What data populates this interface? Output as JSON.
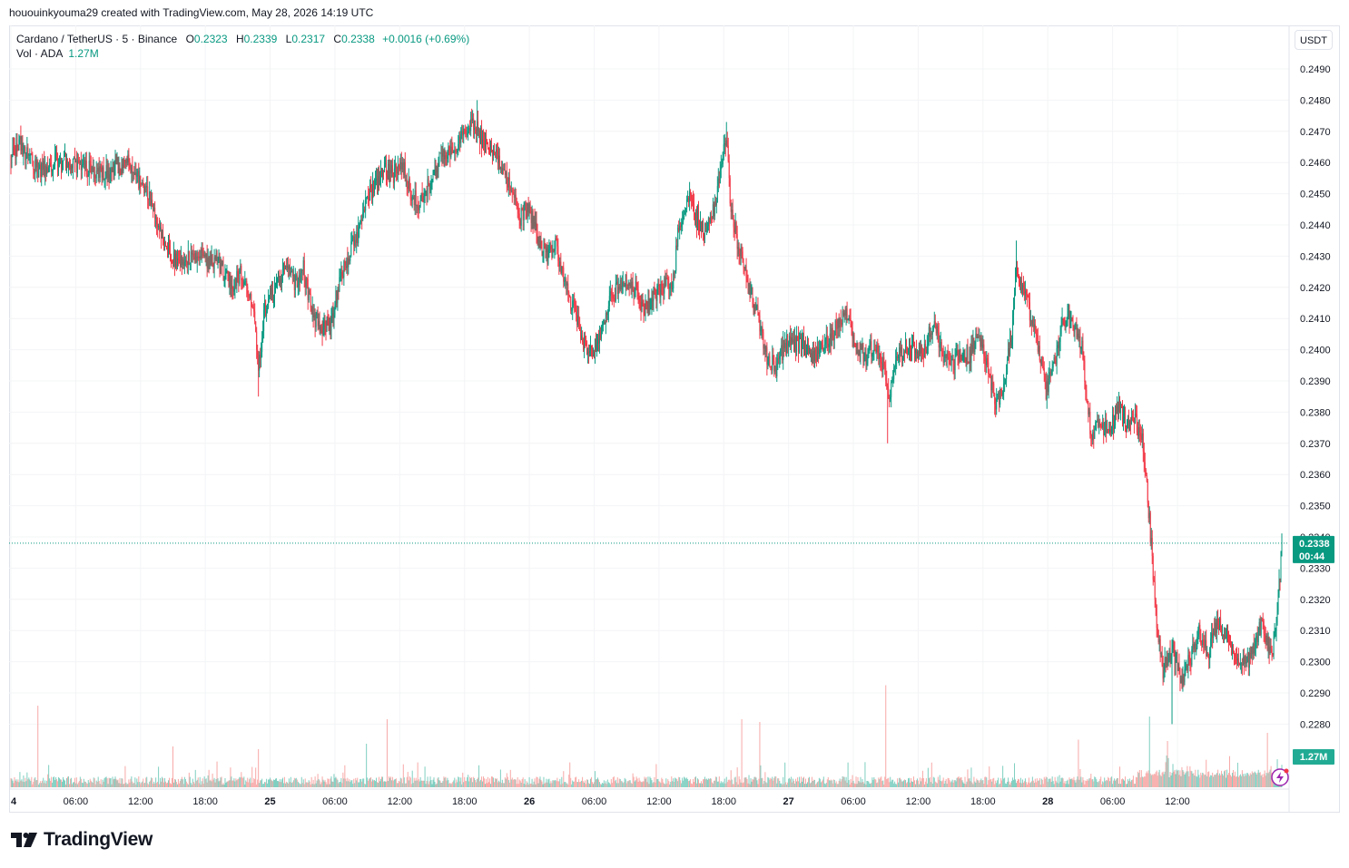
{
  "header": {
    "attribution": "hououinkyouma29 created with TradingView.com, May 28, 2026 14:19 UTC"
  },
  "legend": {
    "symbol": "Cardano / TetherUS · 5 · Binance",
    "o_label": "O",
    "o_value": "0.2323",
    "h_label": "H",
    "h_value": "0.2339",
    "l_label": "L",
    "l_value": "0.2317",
    "c_label": "C",
    "c_value": "0.2338",
    "change": "+0.0016 (+0.69%)",
    "vol_label": "Vol · ADA",
    "vol_value": "1.27M"
  },
  "currency_button": "USDT",
  "brand": {
    "name": "TradingView",
    "icon": "tradingview-logo-icon"
  },
  "colors": {
    "up": "#089981",
    "down": "#f23645",
    "vol_up": "#7fcfc1",
    "vol_down": "#f7a9a7",
    "grid": "#f3f4f6",
    "text": "#131722"
  },
  "chart_data": {
    "type": "candlestick",
    "instrument": "Cardano / TetherUS",
    "interval": "5",
    "exchange": "Binance",
    "ylim": [
      0.2275,
      0.2492
    ],
    "yticks": [
      "0.2490",
      "0.2480",
      "0.2470",
      "0.2460",
      "0.2450",
      "0.2440",
      "0.2430",
      "0.2420",
      "0.2410",
      "0.2400",
      "0.2390",
      "0.2380",
      "0.2370",
      "0.2360",
      "0.2350",
      "0.2340",
      "0.2330",
      "0.2320",
      "0.2310",
      "0.2300",
      "0.2290",
      "0.2280"
    ],
    "xlim": [
      0,
      1412
    ],
    "xticks": [
      {
        "t": 0,
        "label": "4"
      },
      {
        "t": 72,
        "label": "06:00"
      },
      {
        "t": 144,
        "label": "12:00"
      },
      {
        "t": 216,
        "label": "18:00"
      },
      {
        "t": 288,
        "label": "25"
      },
      {
        "t": 360,
        "label": "06:00"
      },
      {
        "t": 432,
        "label": "12:00"
      },
      {
        "t": 504,
        "label": "18:00"
      },
      {
        "t": 576,
        "label": "26"
      },
      {
        "t": 648,
        "label": "06:00"
      },
      {
        "t": 720,
        "label": "12:00"
      },
      {
        "t": 792,
        "label": "18:00"
      },
      {
        "t": 864,
        "label": "27"
      },
      {
        "t": 936,
        "label": "06:00"
      },
      {
        "t": 1008,
        "label": "12:00"
      },
      {
        "t": 1080,
        "label": "18:00"
      },
      {
        "t": 1152,
        "label": "28"
      },
      {
        "t": 1224,
        "label": "06:00"
      },
      {
        "t": 1296,
        "label": "12:00"
      }
    ],
    "price_path": [
      [
        0,
        0.2461
      ],
      [
        10,
        0.2466
      ],
      [
        30,
        0.2457
      ],
      [
        50,
        0.2461
      ],
      [
        80,
        0.2459
      ],
      [
        100,
        0.2456
      ],
      [
        130,
        0.246
      ],
      [
        150,
        0.2451
      ],
      [
        165,
        0.244
      ],
      [
        175,
        0.2433
      ],
      [
        185,
        0.2427
      ],
      [
        200,
        0.2431
      ],
      [
        215,
        0.2429
      ],
      [
        230,
        0.2428
      ],
      [
        245,
        0.242
      ],
      [
        255,
        0.2425
      ],
      [
        265,
        0.2418
      ],
      [
        270,
        0.241
      ],
      [
        275,
        0.2393
      ],
      [
        282,
        0.2413
      ],
      [
        290,
        0.2418
      ],
      [
        305,
        0.2426
      ],
      [
        315,
        0.2421
      ],
      [
        325,
        0.2426
      ],
      [
        335,
        0.2411
      ],
      [
        345,
        0.2407
      ],
      [
        355,
        0.2409
      ],
      [
        365,
        0.2421
      ],
      [
        375,
        0.243
      ],
      [
        385,
        0.2437
      ],
      [
        395,
        0.2448
      ],
      [
        405,
        0.2453
      ],
      [
        415,
        0.2457
      ],
      [
        425,
        0.2456
      ],
      [
        435,
        0.2459
      ],
      [
        445,
        0.245
      ],
      [
        455,
        0.2447
      ],
      [
        465,
        0.2453
      ],
      [
        475,
        0.2461
      ],
      [
        485,
        0.2462
      ],
      [
        495,
        0.2464
      ],
      [
        505,
        0.2471
      ],
      [
        515,
        0.2473
      ],
      [
        525,
        0.2466
      ],
      [
        535,
        0.2465
      ],
      [
        545,
        0.2458
      ],
      [
        555,
        0.2452
      ],
      [
        565,
        0.2442
      ],
      [
        575,
        0.2446
      ],
      [
        585,
        0.2437
      ],
      [
        595,
        0.243
      ],
      [
        605,
        0.2434
      ],
      [
        615,
        0.2421
      ],
      [
        625,
        0.2413
      ],
      [
        635,
        0.2403
      ],
      [
        645,
        0.2398
      ],
      [
        655,
        0.2405
      ],
      [
        665,
        0.2416
      ],
      [
        675,
        0.242
      ],
      [
        685,
        0.2422
      ],
      [
        695,
        0.2419
      ],
      [
        705,
        0.2412
      ],
      [
        715,
        0.2418
      ],
      [
        725,
        0.2421
      ],
      [
        735,
        0.2419
      ],
      [
        742,
        0.244
      ],
      [
        752,
        0.245
      ],
      [
        762,
        0.2442
      ],
      [
        772,
        0.2437
      ],
      [
        782,
        0.2446
      ],
      [
        790,
        0.2462
      ],
      [
        795,
        0.2469
      ],
      [
        800,
        0.2445
      ],
      [
        810,
        0.2431
      ],
      [
        820,
        0.2421
      ],
      [
        830,
        0.241
      ],
      [
        840,
        0.2398
      ],
      [
        850,
        0.2394
      ],
      [
        860,
        0.2402
      ],
      [
        870,
        0.2401
      ],
      [
        880,
        0.2403
      ],
      [
        890,
        0.2396
      ],
      [
        900,
        0.2402
      ],
      [
        910,
        0.2403
      ],
      [
        920,
        0.2409
      ],
      [
        930,
        0.2411
      ],
      [
        940,
        0.2401
      ],
      [
        950,
        0.2398
      ],
      [
        960,
        0.2402
      ],
      [
        970,
        0.2394
      ],
      [
        975,
        0.2384
      ],
      [
        985,
        0.2397
      ],
      [
        995,
        0.2401
      ],
      [
        1005,
        0.24
      ],
      [
        1015,
        0.2399
      ],
      [
        1025,
        0.241
      ],
      [
        1035,
        0.2398
      ],
      [
        1045,
        0.2395
      ],
      [
        1055,
        0.2399
      ],
      [
        1065,
        0.2398
      ],
      [
        1075,
        0.2405
      ],
      [
        1085,
        0.2395
      ],
      [
        1095,
        0.2382
      ],
      [
        1105,
        0.2392
      ],
      [
        1112,
        0.2405
      ],
      [
        1117,
        0.2426
      ],
      [
        1125,
        0.2418
      ],
      [
        1135,
        0.241
      ],
      [
        1145,
        0.2396
      ],
      [
        1150,
        0.2387
      ],
      [
        1160,
        0.2397
      ],
      [
        1170,
        0.241
      ],
      [
        1180,
        0.2409
      ],
      [
        1190,
        0.24
      ],
      [
        1200,
        0.2372
      ],
      [
        1210,
        0.2377
      ],
      [
        1220,
        0.2373
      ],
      [
        1230,
        0.2382
      ],
      [
        1240,
        0.2376
      ],
      [
        1250,
        0.2377
      ],
      [
        1258,
        0.237
      ],
      [
        1265,
        0.2345
      ],
      [
        1272,
        0.2316
      ],
      [
        1280,
        0.2297
      ],
      [
        1290,
        0.2305
      ],
      [
        1300,
        0.2293
      ],
      [
        1310,
        0.2301
      ],
      [
        1320,
        0.2309
      ],
      [
        1330,
        0.2303
      ],
      [
        1340,
        0.2312
      ],
      [
        1350,
        0.231
      ],
      [
        1360,
        0.2301
      ],
      [
        1370,
        0.2299
      ],
      [
        1380,
        0.2303
      ],
      [
        1390,
        0.2313
      ],
      [
        1400,
        0.2302
      ],
      [
        1406,
        0.231
      ],
      [
        1412,
        0.2338
      ]
    ],
    "notable_extremes": [
      {
        "t": 275,
        "low": 0.2385
      },
      {
        "t": 518,
        "high": 0.248
      },
      {
        "t": 795,
        "high": 0.2473
      },
      {
        "t": 974,
        "low": 0.237
      },
      {
        "t": 1117,
        "high": 0.2435
      },
      {
        "t": 1290,
        "low": 0.228
      }
    ],
    "volume_spikes": [
      {
        "t": 30,
        "v": 0.6
      },
      {
        "t": 180,
        "v": 0.3
      },
      {
        "t": 275,
        "v": 0.28
      },
      {
        "t": 395,
        "v": 0.32
      },
      {
        "t": 418,
        "v": 0.5
      },
      {
        "t": 812,
        "v": 0.5
      },
      {
        "t": 832,
        "v": 0.48
      },
      {
        "t": 972,
        "v": 0.75
      },
      {
        "t": 1186,
        "v": 0.35
      },
      {
        "t": 1265,
        "v": 0.52
      },
      {
        "t": 1285,
        "v": 0.34
      },
      {
        "t": 1396,
        "v": 0.4
      }
    ],
    "last_price": {
      "value": 0.2338,
      "label": "0.2338",
      "countdown": "00:44"
    },
    "last_volume": {
      "label": "1.27M"
    },
    "grid": true,
    "axis_position": "right"
  }
}
